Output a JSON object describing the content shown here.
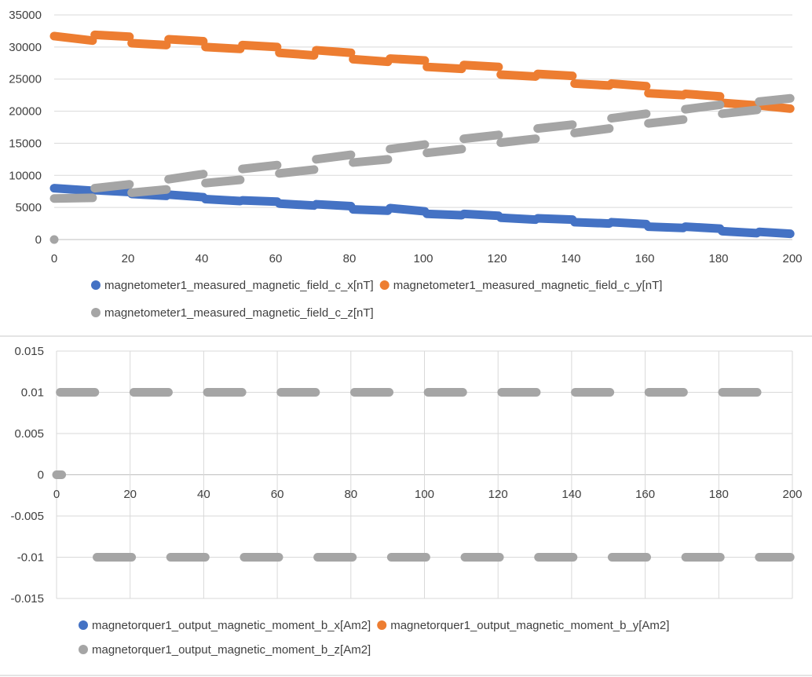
{
  "chart_data": [
    {
      "type": "scatter",
      "xlim": [
        0,
        200
      ],
      "ylim": [
        0,
        35000
      ],
      "x_ticks": [
        "0",
        "20",
        "40",
        "60",
        "80",
        "100",
        "120",
        "140",
        "160",
        "180",
        "200"
      ],
      "y_ticks": [
        "0",
        "5000",
        "10000",
        "15000",
        "20000",
        "25000",
        "30000",
        "35000"
      ],
      "grid": "horizontal",
      "legend_position": "bottom",
      "legend": [
        "magnetometer1_measured_magnetic_field_c_x[nT]",
        "magnetometer1_measured_magnetic_field_c_y[nT]",
        "magnetometer1_measured_magnetic_field_c_z[nT]"
      ],
      "series": [
        {
          "name": "magnetometer1_measured_magnetic_field_c_x[nT]",
          "color": "#4472c4",
          "segments": [
            [
              0,
              11,
              8000,
              7600
            ],
            [
              11,
              21,
              7700,
              7400
            ],
            [
              21,
              31,
              7100,
              6800
            ],
            [
              31,
              41,
              7000,
              6600
            ],
            [
              41,
              51,
              6300,
              6000
            ],
            [
              51,
              61,
              6100,
              5900
            ],
            [
              61,
              71,
              5600,
              5300
            ],
            [
              71,
              81,
              5500,
              5200
            ],
            [
              81,
              91,
              4700,
              4500
            ],
            [
              91,
              101,
              4900,
              4400
            ],
            [
              101,
              111,
              4000,
              3800
            ],
            [
              111,
              121,
              4000,
              3700
            ],
            [
              121,
              131,
              3400,
              3100
            ],
            [
              131,
              141,
              3300,
              3100
            ],
            [
              141,
              151,
              2700,
              2500
            ],
            [
              151,
              161,
              2700,
              2400
            ],
            [
              161,
              171,
              2000,
              1800
            ],
            [
              171,
              181,
              2000,
              1700
            ],
            [
              181,
              191,
              1300,
              1000
            ],
            [
              191,
              200,
              1200,
              900
            ]
          ]
        },
        {
          "name": "magnetometer1_measured_magnetic_field_c_y[nT]",
          "color": "#ed7d31",
          "segments": [
            [
              0,
              11,
              31700,
              31000
            ],
            [
              11,
              21,
              31900,
              31600
            ],
            [
              21,
              31,
              30600,
              30300
            ],
            [
              31,
              41,
              31200,
              30900
            ],
            [
              41,
              51,
              30000,
              29700
            ],
            [
              51,
              61,
              30300,
              30000
            ],
            [
              61,
              71,
              29100,
              28700
            ],
            [
              71,
              81,
              29500,
              29100
            ],
            [
              81,
              91,
              28100,
              27700
            ],
            [
              91,
              101,
              28200,
              27900
            ],
            [
              101,
              111,
              26900,
              26600
            ],
            [
              111,
              121,
              27200,
              26900
            ],
            [
              121,
              131,
              25700,
              25400
            ],
            [
              131,
              141,
              25800,
              25500
            ],
            [
              141,
              151,
              24300,
              24000
            ],
            [
              151,
              161,
              24300,
              23900
            ],
            [
              161,
              171,
              22800,
              22500
            ],
            [
              171,
              181,
              22700,
              22300
            ],
            [
              181,
              191,
              21300,
              20900
            ],
            [
              191,
              200,
              20900,
              20400
            ]
          ]
        },
        {
          "name": "magnetometer1_measured_magnetic_field_c_z[nT]",
          "color": "#a5a5a5",
          "points": [
            [
              0,
              0
            ]
          ],
          "segments": [
            [
              0,
              11,
              6400,
              6500
            ],
            [
              11,
              21,
              8000,
              8600
            ],
            [
              21,
              31,
              7300,
              7800
            ],
            [
              31,
              41,
              9400,
              10200
            ],
            [
              41,
              51,
              8800,
              9300
            ],
            [
              51,
              61,
              11000,
              11600
            ],
            [
              61,
              71,
              10300,
              10900
            ],
            [
              71,
              81,
              12500,
              13200
            ],
            [
              81,
              91,
              12000,
              12500
            ],
            [
              91,
              101,
              14100,
              14800
            ],
            [
              101,
              111,
              13500,
              14100
            ],
            [
              111,
              121,
              15700,
              16300
            ],
            [
              121,
              131,
              15100,
              15700
            ],
            [
              131,
              141,
              17300,
              17900
            ],
            [
              141,
              151,
              16600,
              17300
            ],
            [
              151,
              161,
              18900,
              19600
            ],
            [
              161,
              171,
              18100,
              18700
            ],
            [
              171,
              181,
              20300,
              21000
            ],
            [
              181,
              191,
              19600,
              20200
            ],
            [
              191,
              200,
              21500,
              22000
            ]
          ]
        }
      ]
    },
    {
      "type": "scatter",
      "xlim": [
        0,
        200
      ],
      "ylim": [
        -0.015,
        0.015
      ],
      "x_ticks": [
        "0",
        "20",
        "40",
        "60",
        "80",
        "100",
        "120",
        "140",
        "160",
        "180",
        "200"
      ],
      "y_ticks": [
        "-0.015",
        "-0.01",
        "-0.005",
        "0",
        "0.005",
        "0.01",
        "0.015"
      ],
      "grid": "horizontal and vertical",
      "legend_position": "bottom",
      "legend": [
        "magnetorquer1_output_magnetic_moment_b_x[Am2]",
        "magnetorquer1_output_magnetic_moment_b_y[Am2]",
        "magnetorquer1_output_magnetic_moment_b_z[Am2]"
      ],
      "series": [
        {
          "name": "magnetorquer1_output_magnetic_moment_b_x[Am2]",
          "color": "#4472c4",
          "segments": []
        },
        {
          "name": "magnetorquer1_output_magnetic_moment_b_y[Am2]",
          "color": "#ed7d31",
          "segments": []
        },
        {
          "name": "magnetorquer1_output_magnetic_moment_b_z[Am2]",
          "color": "#a5a5a5",
          "segments": [
            [
              0,
              2,
              0,
              0
            ],
            [
              1,
              11,
              0.01,
              0.01
            ],
            [
              11,
              21,
              -0.01,
              -0.01
            ],
            [
              21,
              31,
              0.01,
              0.01
            ],
            [
              31,
              41,
              -0.01,
              -0.01
            ],
            [
              41,
              51,
              0.01,
              0.01
            ],
            [
              51,
              61,
              -0.01,
              -0.01
            ],
            [
              61,
              71,
              0.01,
              0.01
            ],
            [
              71,
              81,
              -0.01,
              -0.01
            ],
            [
              81,
              91,
              0.01,
              0.01
            ],
            [
              91,
              101,
              -0.01,
              -0.01
            ],
            [
              101,
              111,
              0.01,
              0.01
            ],
            [
              111,
              121,
              -0.01,
              -0.01
            ],
            [
              121,
              131,
              0.01,
              0.01
            ],
            [
              131,
              141,
              -0.01,
              -0.01
            ],
            [
              141,
              151,
              0.01,
              0.01
            ],
            [
              151,
              161,
              -0.01,
              -0.01
            ],
            [
              161,
              171,
              0.01,
              0.01
            ],
            [
              171,
              181,
              -0.01,
              -0.01
            ],
            [
              181,
              191,
              0.01,
              0.01
            ],
            [
              191,
              200,
              -0.01,
              -0.01
            ]
          ]
        }
      ]
    }
  ]
}
